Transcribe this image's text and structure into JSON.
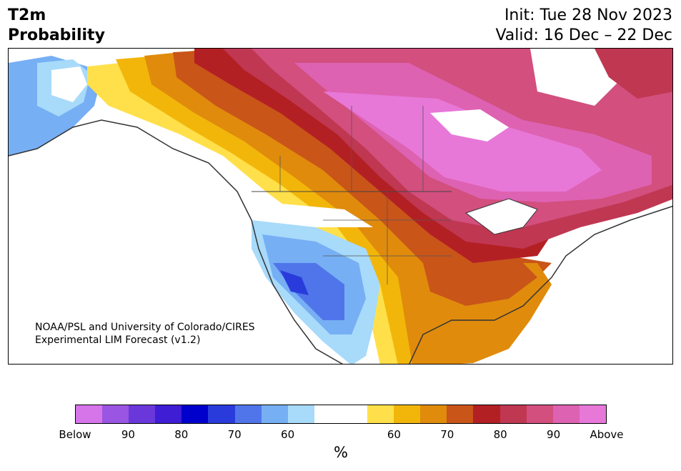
{
  "title": {
    "left": "T2m\nProbability",
    "init": "Init: Tue 28 Nov 2023",
    "valid": "Valid: 16 Dec – 22 Dec"
  },
  "credit": {
    "line1": "NOAA/PSL and University of Colorado/CIRES",
    "line2": "Experimental LIM Forecast (v1.2)"
  },
  "colorbar": {
    "colors": [
      "#d674ea",
      "#9a55e2",
      "#6a38da",
      "#3e1dd5",
      "#0000cc",
      "#2a3bdc",
      "#5075ea",
      "#76aff4",
      "#a8dafa",
      "#ffffff",
      "#ffffff",
      "#ffe04a",
      "#f2b60a",
      "#e08b0c",
      "#c95519",
      "#b32024",
      "#c03752",
      "#d24f7e",
      "#de62b2",
      "#e778d8"
    ],
    "tick_labels": [
      "Below",
      "90",
      "80",
      "70",
      "60",
      "60",
      "70",
      "80",
      "90",
      "Above"
    ],
    "unit": "%"
  },
  "legend_colors": {
    "above_high": "#e778d8",
    "above_mid": "#d24f7e",
    "above_low": "#ffe04a",
    "below_low": "#a8dafa",
    "below_mid": "#5075ea",
    "below_high": "#2a3bdc"
  }
}
